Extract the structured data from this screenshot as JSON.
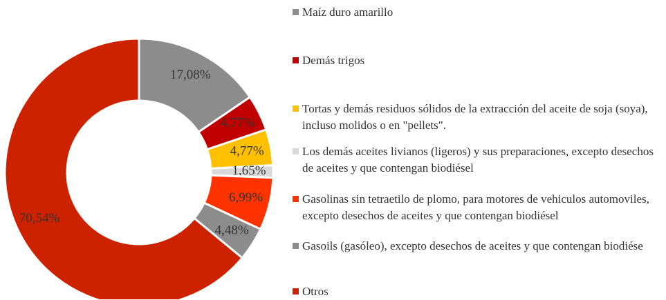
{
  "chart_data": {
    "type": "donut",
    "series": [
      {
        "name": "Maíz duro amarillo",
        "color": "#8c8c8c"
      },
      {
        "name": "Demás trigos",
        "color": "#c00000"
      },
      {
        "name": "Tortas y demás residuos sólidos de la extracción del aceite de soja (soya), incluso molidos o en \"pellets\".",
        "color": "#ffc000"
      },
      {
        "name": "Los demás aceites livianos (ligeros) y sus preparaciones, excepto desechos de aceites y que contengan biodiésel",
        "color": "#d9d9d9"
      },
      {
        "name": "Gasolinas sin tetraetilo de plomo, para motores de vehiculos automoviles, excepto desechos de aceites y que contengan biodiésel",
        "color": "#ff3300"
      },
      {
        "name": "Gasoils (gasóleo), excepto desechos de aceites y que contengan biodiése",
        "color": "#8c8c8c"
      },
      {
        "name": "Otros",
        "color": "#cc2200"
      }
    ],
    "values": [
      17.08,
      4.77,
      4.77,
      1.65,
      6.99,
      4.48,
      70.54
    ],
    "value_labels": [
      "17,08%",
      "4,77%",
      "4,77%",
      "1,65%",
      "6,99%",
      "4,48%",
      "70,54%"
    ]
  }
}
